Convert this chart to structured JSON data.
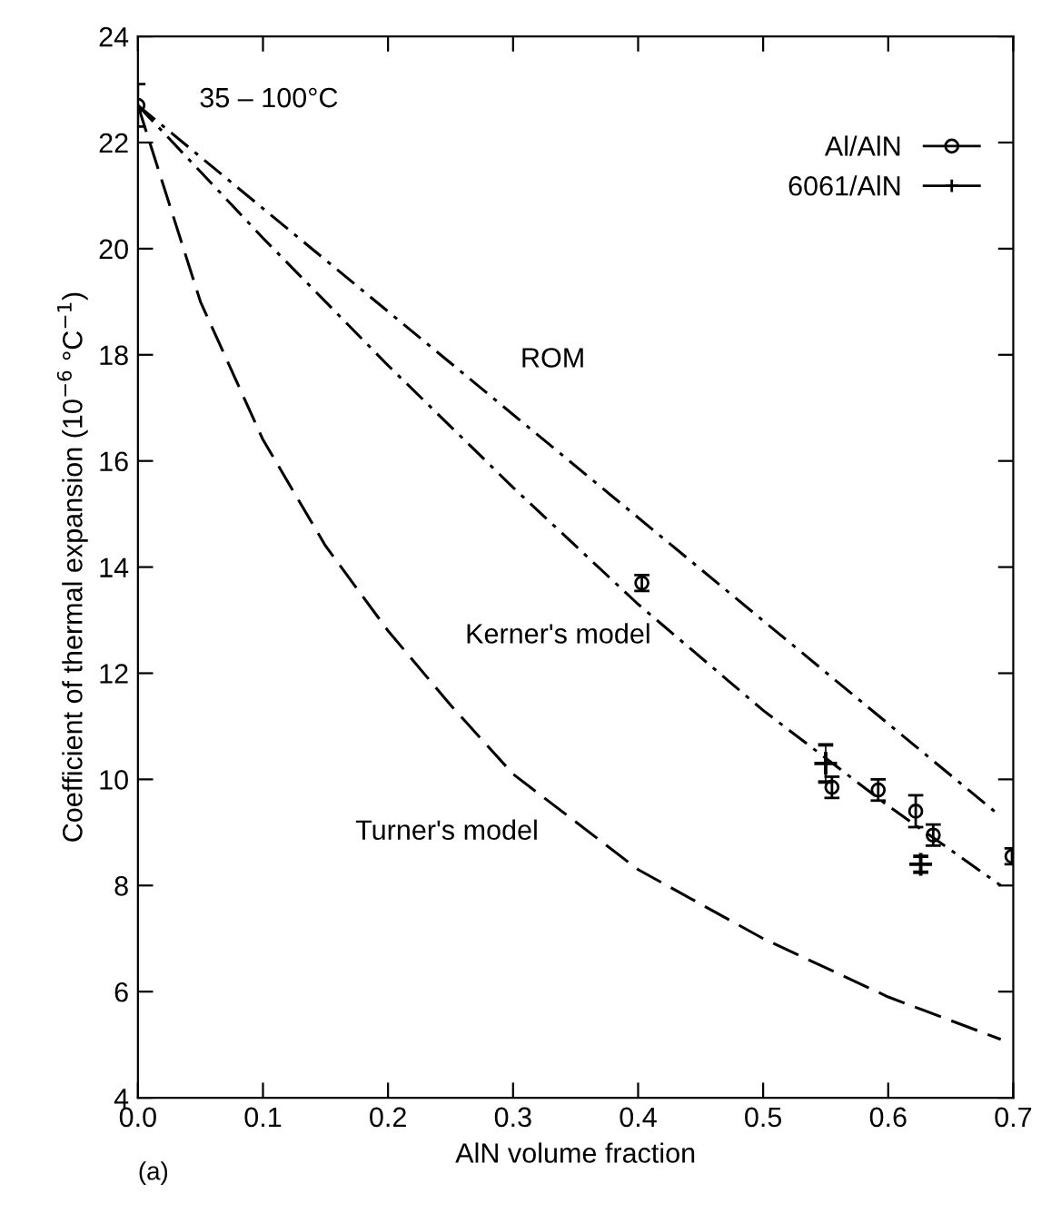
{
  "chart_data": {
    "type": "scatter",
    "xlabel": "AlN volume fraction",
    "ylabel": "Coefficient of thermal expansion (10$^{−6}$ °C$^{−1}$)",
    "xlim": [
      0,
      0.7
    ],
    "ylim": [
      4,
      24
    ],
    "xticks": [
      {
        "value": 0,
        "label": "0.0"
      },
      0.1,
      0.2,
      0.3,
      0.4,
      0.5,
      0.6,
      0.7
    ],
    "yticks": [
      4,
      6,
      8,
      10,
      12,
      14,
      16,
      18,
      20,
      22,
      24
    ],
    "grid": false,
    "legend": "top right",
    "series": [
      {
        "name": "Al/AlN",
        "marker": "circle",
        "color": "#000000",
        "x": [
          0,
          0.403,
          0.555,
          0.592,
          0.622,
          0.636,
          0.699
        ],
        "values": [
          22.7,
          13.7,
          9.85,
          9.8,
          9.4,
          8.95,
          8.55
        ],
        "errors": [
          0.4,
          0.15,
          0.2,
          0.2,
          0.3,
          0.2,
          0.15
        ]
      },
      {
        "name": "6061/AlN",
        "marker": "cross",
        "color": "#000000",
        "x": [
          0.55,
          0.626
        ],
        "values": [
          10.3,
          8.4
        ],
        "errors": [
          0.35,
          0.15
        ]
      },
      {
        "type": "line",
        "line_style": "dashdot",
        "color": "#000000",
        "x": [
          0,
          0.69
        ],
        "values": [
          22.7,
          9.3
        ]
      },
      {
        "type": "line",
        "line_style": "dashdot",
        "color": "#000000",
        "x": [
          0,
          0.1,
          0.2,
          0.3,
          0.4,
          0.5,
          0.6,
          0.69
        ],
        "values": [
          22.7,
          20.2,
          17.8,
          15.5,
          13.3,
          11.3,
          9.5,
          8.0
        ]
      },
      {
        "type": "line",
        "line_style": "dashed",
        "color": "#000000",
        "x": [
          0,
          0.05,
          0.1,
          0.15,
          0.2,
          0.25,
          0.3,
          0.4,
          0.5,
          0.6,
          0.69
        ],
        "values": [
          22.7,
          19.0,
          16.4,
          14.4,
          12.8,
          11.4,
          10.1,
          8.3,
          7.0,
          5.9,
          5.1
        ]
      }
    ],
    "annotations": [
      "35 – 100°C",
      "(a)",
      "ROM",
      "Kerner's model",
      "Turner's model"
    ]
  }
}
